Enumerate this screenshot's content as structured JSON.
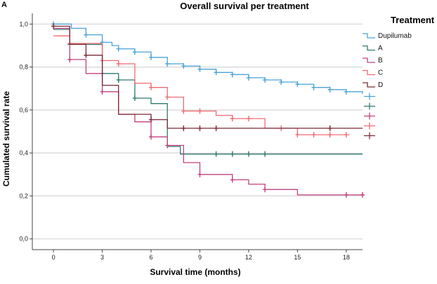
{
  "chart_data": {
    "type": "line",
    "panel_letter": "A",
    "title": "Overall survival per treatment",
    "xlabel": "Survival time (months)",
    "ylabel": "Cumulated survival rate",
    "xlim": [
      -1.3,
      19
    ],
    "ylim": [
      -0.05,
      1.05
    ],
    "x_ticks": [
      0,
      3,
      6,
      9,
      12,
      15,
      18
    ],
    "x_tick_labels": [
      "0",
      "3",
      "6",
      "9",
      "12",
      "15",
      "18"
    ],
    "y_ticks": [
      0,
      0.2,
      0.4,
      0.6,
      0.8,
      1.0
    ],
    "y_tick_labels": [
      "0,0",
      "0,2",
      "0,4",
      "0,6",
      "0,8",
      "1,0"
    ],
    "grid": "horizontal",
    "legend_title": "Treatment",
    "legend_position": "right",
    "series": [
      {
        "name": "Dupilumab",
        "color": "#4aa3d8",
        "steps": [
          [
            0,
            1.0
          ],
          [
            1.1,
            0.98
          ],
          [
            2,
            0.95
          ],
          [
            3,
            0.915
          ],
          [
            3.6,
            0.9
          ],
          [
            4,
            0.885
          ],
          [
            5,
            0.87
          ],
          [
            6,
            0.845
          ],
          [
            7,
            0.815
          ],
          [
            8,
            0.805
          ],
          [
            9,
            0.79
          ],
          [
            10,
            0.775
          ],
          [
            11,
            0.765
          ],
          [
            12,
            0.75
          ],
          [
            13,
            0.74
          ],
          [
            14,
            0.73
          ],
          [
            15,
            0.72
          ],
          [
            16,
            0.705
          ],
          [
            17,
            0.695
          ],
          [
            18,
            0.685
          ],
          [
            19,
            0.675
          ]
        ],
        "censors": [
          [
            0,
            1.0
          ],
          [
            2,
            0.95
          ],
          [
            3,
            0.915
          ],
          [
            4,
            0.885
          ],
          [
            5,
            0.87
          ],
          [
            6,
            0.845
          ],
          [
            7,
            0.815
          ],
          [
            8,
            0.805
          ],
          [
            9,
            0.79
          ],
          [
            10,
            0.775
          ],
          [
            11,
            0.765
          ],
          [
            12,
            0.75
          ],
          [
            13,
            0.74
          ],
          [
            14,
            0.73
          ],
          [
            15,
            0.72
          ],
          [
            16,
            0.705
          ],
          [
            17,
            0.695
          ],
          [
            18,
            0.685
          ]
        ]
      },
      {
        "name": "A",
        "color": "#2e7a70",
        "steps": [
          [
            0,
            0.975
          ],
          [
            1,
            0.905
          ],
          [
            3,
            0.77
          ],
          [
            4,
            0.74
          ],
          [
            5,
            0.655
          ],
          [
            6,
            0.63
          ],
          [
            7,
            0.43
          ],
          [
            7.8,
            0.395
          ],
          [
            19,
            0.395
          ]
        ],
        "censors": [
          [
            1,
            0.905
          ],
          [
            3,
            0.77
          ],
          [
            4,
            0.74
          ],
          [
            5,
            0.655
          ],
          [
            10,
            0.395
          ],
          [
            11,
            0.395
          ],
          [
            12,
            0.395
          ],
          [
            13,
            0.395
          ]
        ]
      },
      {
        "name": "B",
        "color": "#c0427e",
        "steps": [
          [
            0,
            0.98
          ],
          [
            1,
            0.835
          ],
          [
            2,
            0.77
          ],
          [
            3,
            0.685
          ],
          [
            4,
            0.58
          ],
          [
            5,
            0.545
          ],
          [
            6,
            0.475
          ],
          [
            7,
            0.435
          ],
          [
            8,
            0.355
          ],
          [
            9,
            0.3
          ],
          [
            11,
            0.275
          ],
          [
            12,
            0.255
          ],
          [
            13,
            0.23
          ],
          [
            15,
            0.205
          ],
          [
            19,
            0.205
          ]
        ],
        "censors": [
          [
            1,
            0.835
          ],
          [
            3,
            0.685
          ],
          [
            6,
            0.475
          ],
          [
            7,
            0.435
          ],
          [
            9,
            0.3
          ],
          [
            11,
            0.275
          ],
          [
            13,
            0.23
          ],
          [
            18,
            0.205
          ],
          [
            19,
            0.205
          ]
        ]
      },
      {
        "name": "C",
        "color": "#ef6b73",
        "steps": [
          [
            0,
            0.945
          ],
          [
            0.5,
            0.945
          ],
          [
            1,
            0.91
          ],
          [
            3,
            0.83
          ],
          [
            4,
            0.815
          ],
          [
            5,
            0.725
          ],
          [
            6,
            0.705
          ],
          [
            7,
            0.66
          ],
          [
            8,
            0.595
          ],
          [
            10,
            0.575
          ],
          [
            11,
            0.56
          ],
          [
            13,
            0.515
          ],
          [
            15,
            0.485
          ],
          [
            18.2,
            0.485
          ]
        ],
        "censors": [
          [
            1,
            0.91
          ],
          [
            3,
            0.83
          ],
          [
            4,
            0.815
          ],
          [
            6,
            0.705
          ],
          [
            7,
            0.66
          ],
          [
            8,
            0.595
          ],
          [
            9,
            0.595
          ],
          [
            11,
            0.56
          ],
          [
            12,
            0.56
          ],
          [
            14,
            0.515
          ],
          [
            15,
            0.485
          ],
          [
            16,
            0.485
          ],
          [
            17,
            0.485
          ],
          [
            18,
            0.485
          ]
        ]
      },
      {
        "name": "D",
        "color": "#7a2a35",
        "steps": [
          [
            0,
            0.99
          ],
          [
            1,
            0.905
          ],
          [
            2,
            0.855
          ],
          [
            3,
            0.715
          ],
          [
            4,
            0.58
          ],
          [
            6,
            0.555
          ],
          [
            7,
            0.515
          ],
          [
            19,
            0.515
          ]
        ],
        "censors": [
          [
            0,
            0.99
          ],
          [
            2,
            0.855
          ],
          [
            6,
            0.555
          ],
          [
            8,
            0.515
          ],
          [
            9,
            0.515
          ],
          [
            10,
            0.515
          ],
          [
            17,
            0.515
          ]
        ]
      }
    ]
  }
}
